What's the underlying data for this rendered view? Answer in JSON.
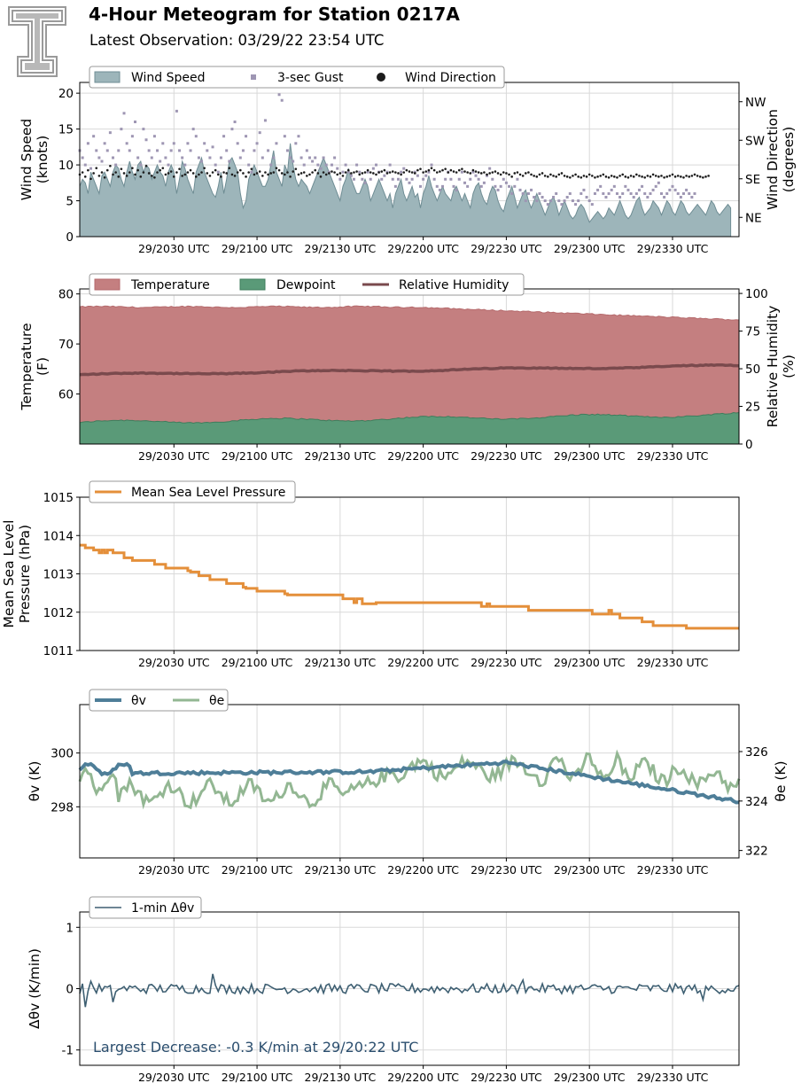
{
  "header": {
    "title": "4-Hour Meteogram for Station 0217A",
    "subtitle": "Latest Observation: 03/29/22 23:54 UTC",
    "logo_icon": "texas-tech-double-t-logo"
  },
  "colors": {
    "wind_fill": "#9db5ba",
    "wind_line": "#6f8d94",
    "gust": "#9e96b3",
    "direction": "#1c1c1c",
    "temperature": "#c47f80",
    "dewpoint": "#5a9a78",
    "rh": "#7a4a4d",
    "pressure": "#e48f3a",
    "theta_v": "#4e7e98",
    "theta_e": "#93b793",
    "dtheta": "#3e5f72",
    "annotation": "#2b4e6e"
  },
  "chart_data": [
    {
      "id": "wind",
      "type": "area",
      "x_tick_labels": [
        "29/2030 UTC",
        "29/2100 UTC",
        "29/2130 UTC",
        "29/2200 UTC",
        "29/2230 UTC",
        "29/2300 UTC",
        "29/2330 UTC"
      ],
      "x_tick_times_min": [
        1230,
        1260,
        1290,
        1320,
        1350,
        1380,
        1410
      ],
      "x_range_min": [
        1196,
        1434
      ],
      "ylabel": "Wind Speed\n(knots)",
      "ylim": [
        0,
        21.5
      ],
      "yticks": [
        0,
        5,
        10,
        15,
        20
      ],
      "y2label": "Wind Direction\n(degrees)",
      "y2lim": [
        0,
        360
      ],
      "y2ticks": [
        {
          "value": 45,
          "label": "NE"
        },
        {
          "value": 135,
          "label": "SE"
        },
        {
          "value": 225,
          "label": "SW"
        },
        {
          "value": 315,
          "label": "NW"
        }
      ],
      "grid": true,
      "legend": {
        "entries": [
          "Wind Speed",
          "3-sec Gust",
          "Wind Direction"
        ],
        "placement": "top-left"
      },
      "series": [
        {
          "name": "Wind Speed",
          "kind": "area",
          "values": [
            7,
            8,
            7.5,
            6,
            9,
            8,
            7,
            6,
            8.5,
            9,
            8,
            7,
            9,
            10,
            9.5,
            8,
            7,
            9,
            10.5,
            9,
            8,
            10,
            10.5,
            9,
            10,
            9.5,
            8,
            9,
            10,
            9,
            8.5,
            7,
            9,
            10,
            9,
            6,
            8,
            10.5,
            9.5,
            8,
            7,
            6,
            9,
            10,
            11,
            9,
            8,
            7,
            6,
            5.5,
            7,
            9,
            6,
            8,
            10.5,
            11,
            10,
            9,
            6,
            4,
            5,
            8,
            9,
            10,
            9,
            8,
            7,
            7,
            8,
            10,
            12,
            9,
            8,
            7,
            10,
            9,
            13,
            10,
            8,
            7,
            8,
            7.5,
            7,
            6,
            7,
            8,
            9,
            10,
            11,
            10,
            9,
            8,
            7,
            6,
            5,
            7,
            8,
            9.5,
            8,
            7,
            6,
            6,
            7,
            8,
            7,
            5,
            6,
            7,
            8,
            7,
            6,
            5,
            6,
            4,
            6,
            7,
            8,
            6,
            5,
            6,
            7,
            5.5,
            6,
            4,
            6,
            7,
            8.5,
            7,
            6,
            5,
            6,
            7,
            6,
            5.5,
            5,
            6.5,
            7,
            6,
            5,
            6,
            5,
            4,
            6,
            7,
            7.5,
            6,
            5,
            4.5,
            6,
            7,
            6.5,
            5,
            4,
            3.5,
            5,
            6,
            7,
            5.5,
            4,
            5,
            6,
            6.5,
            5,
            4,
            5,
            6,
            5,
            4,
            3,
            4,
            5,
            5.5,
            4.5,
            3,
            4,
            5,
            4,
            3,
            2.5,
            3,
            4,
            4.5,
            4,
            3,
            2,
            2.5,
            3,
            3.5,
            3,
            2.5,
            3,
            4,
            3.5,
            3,
            4,
            5,
            4,
            3,
            2.5,
            3,
            4,
            5,
            5.5,
            4,
            3,
            3.5,
            4,
            5,
            4.5,
            4,
            3,
            4,
            5,
            4.5,
            3.5,
            3,
            4,
            5,
            4.5,
            3.5,
            3,
            3.5,
            4,
            4.5,
            4,
            3.5,
            3,
            4,
            5,
            4.5,
            3.5,
            3,
            3.5,
            4,
            4.5,
            4
          ]
        },
        {
          "name": "3-sec Gust",
          "kind": "points",
          "values": [
            12,
            11,
            10,
            13,
            9.5,
            14,
            12,
            11,
            10.5,
            13,
            12,
            14.5,
            11,
            10,
            12,
            15,
            17.2,
            13,
            12,
            14,
            16,
            11,
            10,
            15,
            13.5,
            12,
            11,
            14,
            12,
            10.5,
            13,
            11,
            10,
            12,
            13,
            17.5,
            12,
            11,
            10,
            13,
            12,
            15,
            14,
            11,
            10.5,
            13,
            12,
            11,
            12.5,
            10,
            9,
            11,
            14,
            12,
            10.5,
            15,
            16,
            13,
            11,
            12,
            14,
            10,
            9,
            12,
            13,
            14.5,
            11,
            16.2,
            12,
            10,
            11,
            13,
            19.8,
            19,
            14,
            12,
            11,
            10.5,
            13,
            14,
            11,
            10,
            12,
            11,
            10.5,
            11,
            10,
            9.5,
            11,
            10,
            9,
            10,
            11,
            9.5,
            8,
            9,
            10,
            9,
            8.5,
            8,
            10,
            9,
            8,
            7.5,
            9,
            8,
            9.5,
            10,
            9,
            8,
            8.5,
            9,
            10,
            8,
            7,
            8,
            9,
            9.5,
            8,
            7.5,
            8,
            9,
            8.5,
            7,
            8,
            8.5,
            9,
            10,
            8,
            7,
            6.5,
            7,
            8,
            9,
            8,
            7,
            6.5,
            8,
            9,
            7.5,
            7,
            8,
            9,
            8.5,
            8,
            7,
            7.5,
            8.5,
            9.5,
            8,
            7,
            6.5,
            7,
            8,
            7.5,
            7,
            6,
            7,
            8,
            6.5,
            6,
            5,
            6,
            6.5,
            5.5,
            5,
            6,
            5.5,
            5,
            4.5,
            5,
            5.5,
            6,
            5,
            4.5,
            5,
            5.5,
            6,
            5,
            4.5,
            5,
            6,
            6.5,
            5.5,
            5,
            4.5,
            6,
            6.5,
            7,
            6,
            5.5,
            6,
            6.5,
            7,
            6,
            5.5,
            6,
            7,
            6.5,
            6,
            5.5,
            6,
            6.5,
            7,
            6,
            5.5,
            6,
            6.5,
            7,
            7.5,
            6,
            5.5,
            6,
            6.5,
            7,
            6.5,
            6,
            5.5,
            6,
            6.5,
            6,
            5.5,
            6
          ]
        },
        {
          "name": "Wind Direction",
          "kind": "points",
          "values": [
            145,
            150,
            140,
            155,
            135,
            148,
            160,
            142,
            150,
            138,
            155,
            165,
            145,
            150,
            140,
            158,
            148,
            142,
            150,
            160,
            145,
            155,
            140,
            150,
            165,
            148,
            142,
            138,
            150,
            155,
            160,
            145,
            148,
            152,
            140,
            150,
            158,
            142,
            145,
            150,
            155,
            148,
            140,
            145,
            150,
            160,
            148,
            142,
            150,
            155,
            145,
            140,
            150,
            148,
            160,
            145,
            142,
            150,
            155,
            148,
            140,
            150,
            158,
            145,
            148,
            152,
            142,
            150,
            145,
            148,
            150,
            160,
            155,
            148,
            145,
            150,
            140,
            152,
            158,
            145,
            148,
            150,
            142,
            145,
            150,
            155,
            148,
            140,
            150,
            145,
            148,
            152,
            150,
            145,
            148,
            142,
            150,
            155,
            148,
            150,
            152,
            145,
            148,
            150,
            155,
            150,
            148,
            145,
            150,
            152,
            155,
            148,
            150,
            152,
            150,
            148,
            145,
            150,
            155,
            152,
            150,
            148,
            155,
            158,
            150,
            152,
            155,
            160,
            155,
            150,
            152,
            155,
            158,
            150,
            155,
            152,
            150,
            155,
            158,
            152,
            150,
            148,
            155,
            152,
            150,
            148,
            150,
            145,
            148,
            150,
            152,
            148,
            145,
            150,
            148,
            145,
            140,
            148,
            150,
            145,
            142,
            148,
            150,
            145,
            142,
            140,
            145,
            148,
            142,
            140,
            145,
            142,
            140,
            145,
            148,
            142,
            140,
            138,
            142,
            145,
            140,
            138,
            142,
            140,
            145,
            142,
            138,
            140,
            142,
            145,
            140,
            138,
            142,
            140,
            138,
            142,
            145,
            140,
            138,
            142,
            140,
            145,
            142,
            140,
            138,
            142,
            140,
            145,
            142,
            140,
            142,
            138,
            140,
            142,
            145,
            140,
            142,
            140,
            138,
            142,
            140,
            142,
            145,
            142,
            140,
            138,
            140,
            142
          ]
        }
      ]
    },
    {
      "id": "temp",
      "type": "area",
      "x_tick_labels": [
        "29/2030 UTC",
        "29/2100 UTC",
        "29/2130 UTC",
        "29/2200 UTC",
        "29/2230 UTC",
        "29/2300 UTC",
        "29/2330 UTC"
      ],
      "ylabel": "Temperature\n(F)",
      "ylim": [
        50,
        81
      ],
      "yticks": [
        60,
        70,
        80
      ],
      "y2label": "Relative Humidity\n(%)",
      "y2lim": [
        0,
        103
      ],
      "y2ticks": [
        0,
        25,
        50,
        75,
        100
      ],
      "grid": true,
      "legend": {
        "entries": [
          "Temperature",
          "Dewpoint",
          "Relative Humidity"
        ],
        "placement": "top-left"
      },
      "series": [
        {
          "name": "Temperature",
          "start": 77.4,
          "end": 74.8,
          "shape": "plateau-then-decline"
        },
        {
          "name": "Dewpoint",
          "start": 54.3,
          "end": 55.9,
          "shape": "slow-rise"
        },
        {
          "name": "Relative Humidity",
          "start": 46,
          "end": 52,
          "shape": "slow-rise"
        }
      ]
    },
    {
      "id": "pressure",
      "type": "line",
      "x_tick_labels": [
        "29/2030 UTC",
        "29/2100 UTC",
        "29/2130 UTC",
        "29/2200 UTC",
        "29/2230 UTC",
        "29/2300 UTC",
        "29/2330 UTC"
      ],
      "ylabel": "Mean Sea Level\nPressure (hPa)",
      "ylim": [
        1011,
        1015
      ],
      "yticks": [
        1011,
        1012,
        1013,
        1014,
        1015
      ],
      "grid": true,
      "legend": {
        "entries": [
          "Mean Sea Level Pressure"
        ],
        "placement": "top-left"
      },
      "series": [
        {
          "name": "Mean Sea Level Pressure",
          "steps": [
            [
              1196,
              1013.75
            ],
            [
              1198,
              1013.68
            ],
            [
              1201,
              1013.62
            ],
            [
              1203,
              1013.55
            ],
            [
              1204,
              1013.62
            ],
            [
              1205,
              1013.55
            ],
            [
              1206,
              1013.62
            ],
            [
              1208,
              1013.55
            ],
            [
              1212,
              1013.42
            ],
            [
              1215,
              1013.35
            ],
            [
              1223,
              1013.25
            ],
            [
              1227,
              1013.15
            ],
            [
              1235,
              1013.08
            ],
            [
              1236,
              1013.05
            ],
            [
              1239,
              1012.95
            ],
            [
              1243,
              1012.85
            ],
            [
              1249,
              1012.75
            ],
            [
              1255,
              1012.65
            ],
            [
              1256,
              1012.62
            ],
            [
              1260,
              1012.55
            ],
            [
              1269,
              1012.55
            ],
            [
              1270,
              1012.48
            ],
            [
              1271,
              1012.45
            ],
            [
              1291,
              1012.35
            ],
            [
              1295,
              1012.25
            ],
            [
              1296,
              1012.35
            ],
            [
              1298,
              1012.22
            ],
            [
              1303,
              1012.25
            ],
            [
              1341,
              1012.15
            ],
            [
              1343,
              1012.22
            ],
            [
              1344,
              1012.15
            ],
            [
              1358,
              1012.05
            ],
            [
              1381,
              1011.95
            ],
            [
              1387,
              1012.05
            ],
            [
              1388,
              1011.95
            ],
            [
              1391,
              1011.85
            ],
            [
              1399,
              1011.75
            ],
            [
              1403,
              1011.65
            ],
            [
              1415,
              1011.58
            ],
            [
              1434,
              1011.58
            ]
          ]
        }
      ]
    },
    {
      "id": "theta",
      "type": "line",
      "x_tick_labels": [
        "29/2030 UTC",
        "29/2100 UTC",
        "29/2130 UTC",
        "29/2200 UTC",
        "29/2230 UTC",
        "29/2300 UTC",
        "29/2330 UTC"
      ],
      "ylabel": "θv (K)",
      "ylim": [
        296.1,
        301.8
      ],
      "yticks": [
        298,
        300
      ],
      "y2label": "θe (K)",
      "y2lim": [
        321.7,
        327.9
      ],
      "y2ticks": [
        322,
        324,
        326
      ],
      "grid": true,
      "legend": {
        "entries": [
          "θv",
          "θe"
        ],
        "placement": "top-left"
      },
      "series": [
        {
          "name": "θv",
          "start": 299.5,
          "end": 298.2,
          "shape": "flat-then-decline"
        },
        {
          "name": "θe",
          "start": 324.8,
          "end": 324.8,
          "shape": "noisy-rise-then-fall"
        }
      ]
    },
    {
      "id": "dtheta",
      "type": "line",
      "x_tick_labels": [
        "29/2030 UTC",
        "29/2100 UTC",
        "29/2130 UTC",
        "29/2200 UTC",
        "29/2230 UTC",
        "29/2300 UTC",
        "29/2330 UTC"
      ],
      "ylabel": "Δθv (K/min)",
      "ylim": [
        -1.25,
        1.25
      ],
      "yticks": [
        -1,
        0,
        1
      ],
      "grid": true,
      "legend": {
        "entries": [
          "1-min Δθv"
        ],
        "placement": "top-left"
      },
      "annotation": "Largest Decrease: -0.3 K/min at 29/20:22 UTC",
      "series": [
        {
          "name": "1-min Δθv",
          "min": -0.3,
          "max": 0.25,
          "shape": "noise-around-zero"
        }
      ]
    }
  ]
}
